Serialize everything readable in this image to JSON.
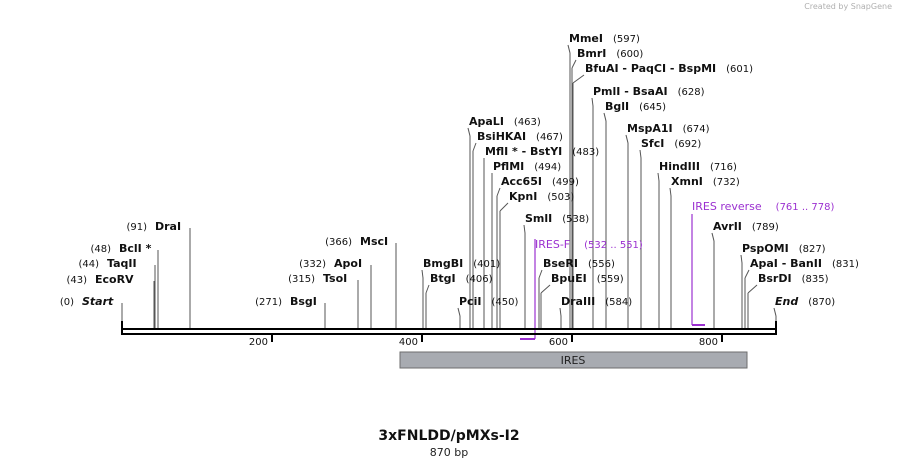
{
  "watermark": "Created by SnapGene",
  "title": "3xFNLDD/pMXs-I2",
  "subtitle": "870 bp",
  "colors": {
    "feature": "#9b30d0",
    "ires_box": "#a8abb1",
    "line": "#000000"
  },
  "ruler_ticks": [
    "200",
    "400",
    "600",
    "800"
  ],
  "ires_label": "IRES",
  "sites": [
    {
      "name": "Start",
      "pos": "(0)",
      "italic": true
    },
    {
      "name": "EcoRV",
      "pos": "(43)"
    },
    {
      "name": "TaqII",
      "pos": "(44)"
    },
    {
      "name": "BclI *",
      "pos": "(48)"
    },
    {
      "name": "DraI",
      "pos": "(91)"
    },
    {
      "name": "BsgI",
      "pos": "(271)"
    },
    {
      "name": "TsoI",
      "pos": "(315)"
    },
    {
      "name": "ApoI",
      "pos": "(332)"
    },
    {
      "name": "MscI",
      "pos": "(366)"
    },
    {
      "name": "BtgI",
      "pos": "(406)"
    },
    {
      "name": "BmgBI",
      "pos": "(401)"
    },
    {
      "name": "PciI",
      "pos": "(450)"
    },
    {
      "name": "ApaLI",
      "pos": "(463)"
    },
    {
      "name": "BsiHKAI",
      "pos": "(467)"
    },
    {
      "name": "MflI * - BstYI",
      "pos": "(483)"
    },
    {
      "name": "PflMI",
      "pos": "(494)"
    },
    {
      "name": "Acc65I",
      "pos": "(499)"
    },
    {
      "name": "KpnI",
      "pos": "(503)"
    },
    {
      "name": "SmlI",
      "pos": "(538)"
    },
    {
      "name": "BseRI",
      "pos": "(556)"
    },
    {
      "name": "BpuEI",
      "pos": "(559)"
    },
    {
      "name": "DraIII",
      "pos": "(584)"
    },
    {
      "name": "MmeI",
      "pos": "(597)"
    },
    {
      "name": "BmrI",
      "pos": "(600)"
    },
    {
      "name": "BfuAI - PaqCI - BspMI",
      "pos": "(601)"
    },
    {
      "name": "PmlI - BsaAI",
      "pos": "(628)"
    },
    {
      "name": "BglI",
      "pos": "(645)"
    },
    {
      "name": "MspA1I",
      "pos": "(674)"
    },
    {
      "name": "SfcI",
      "pos": "(692)"
    },
    {
      "name": "HindIII",
      "pos": "(716)"
    },
    {
      "name": "XmnI",
      "pos": "(732)"
    },
    {
      "name": "AvrII",
      "pos": "(789)"
    },
    {
      "name": "PspOMI",
      "pos": "(827)"
    },
    {
      "name": "ApaI - BanII",
      "pos": "(831)"
    },
    {
      "name": "BsrDI",
      "pos": "(835)"
    },
    {
      "name": "End",
      "pos": "(870)",
      "italic": true
    }
  ],
  "features": [
    {
      "name": "IRES-F",
      "range": "(532 .. 551)"
    },
    {
      "name": "IRES reverse",
      "range": "(761 .. 778)"
    }
  ]
}
